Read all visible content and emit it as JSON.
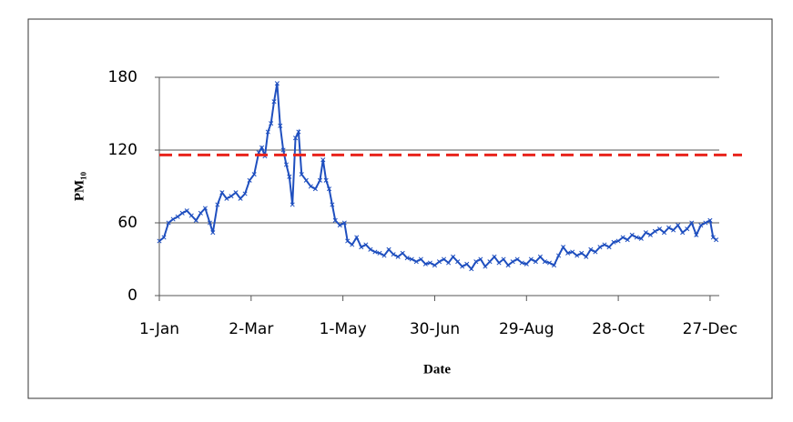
{
  "chart_data": {
    "type": "line",
    "x_label": "Date",
    "y_label": "PM₁₀",
    "x": [
      1,
      4,
      7,
      10,
      13,
      16,
      19,
      22,
      25,
      28,
      31,
      34,
      36,
      39,
      42,
      45,
      48,
      51,
      54,
      57,
      60,
      63,
      66,
      68,
      70,
      72,
      74,
      76,
      78,
      80,
      82,
      84,
      86,
      88,
      90,
      92,
      94,
      97,
      100,
      103,
      106,
      108,
      110,
      112,
      114,
      116,
      119,
      122,
      124,
      127,
      130,
      133,
      136,
      139,
      142,
      145,
      148,
      151,
      154,
      157,
      160,
      163,
      166,
      169,
      172,
      175,
      178,
      181,
      184,
      187,
      190,
      193,
      196,
      199,
      202,
      205,
      208,
      211,
      214,
      217,
      220,
      223,
      226,
      229,
      232,
      235,
      238,
      241,
      244,
      247,
      250,
      253,
      256,
      259,
      262,
      265,
      268,
      271,
      274,
      277,
      280,
      283,
      286,
      289,
      292,
      295,
      298,
      301,
      304,
      307,
      310,
      313,
      316,
      319,
      322,
      325,
      328,
      331,
      334,
      337,
      340,
      343,
      346,
      349,
      352,
      355,
      358,
      361,
      363,
      365
    ],
    "series": [
      {
        "color": "#1f4fbf",
        "values": [
          45,
          48,
          60,
          63,
          65,
          68,
          70,
          66,
          62,
          68,
          72,
          60,
          52,
          75,
          85,
          80,
          82,
          85,
          80,
          84,
          95,
          100,
          118,
          122,
          115,
          135,
          142,
          160,
          175,
          140,
          120,
          108,
          98,
          75,
          130,
          135,
          100,
          95,
          90,
          88,
          95,
          112,
          95,
          88,
          75,
          62,
          58,
          60,
          45,
          42,
          48,
          40,
          42,
          38,
          36,
          35,
          33,
          38,
          34,
          32,
          35,
          31,
          30,
          28,
          30,
          26,
          27,
          25,
          28,
          30,
          27,
          32,
          28,
          24,
          26,
          22,
          28,
          30,
          24,
          28,
          32,
          27,
          30,
          25,
          28,
          30,
          27,
          26,
          30,
          28,
          32,
          28,
          27,
          25,
          33,
          40,
          35,
          36,
          33,
          35,
          32,
          38,
          36,
          40,
          42,
          40,
          44,
          45,
          48,
          46,
          50,
          48,
          47,
          52,
          50,
          53,
          55,
          52,
          56,
          54,
          58,
          52,
          55,
          60,
          50,
          58,
          60,
          62,
          48,
          46
        ]
      }
    ],
    "xlim": [
      1,
      367
    ],
    "ylim": [
      0,
      180
    ],
    "xticks": [
      {
        "value": 1,
        "label": "1-Jan"
      },
      {
        "value": 61,
        "label": "2-Mar"
      },
      {
        "value": 121,
        "label": "1-May"
      },
      {
        "value": 181,
        "label": "30-Jun"
      },
      {
        "value": 241,
        "label": "29-Aug"
      },
      {
        "value": 301,
        "label": "28-Oct"
      },
      {
        "value": 361,
        "label": "27-Dec"
      }
    ],
    "yticks": [
      0,
      60,
      120,
      180
    ],
    "grid": true,
    "reference_line": {
      "value": 116,
      "color": "#e8241c",
      "style": "dashed"
    }
  }
}
